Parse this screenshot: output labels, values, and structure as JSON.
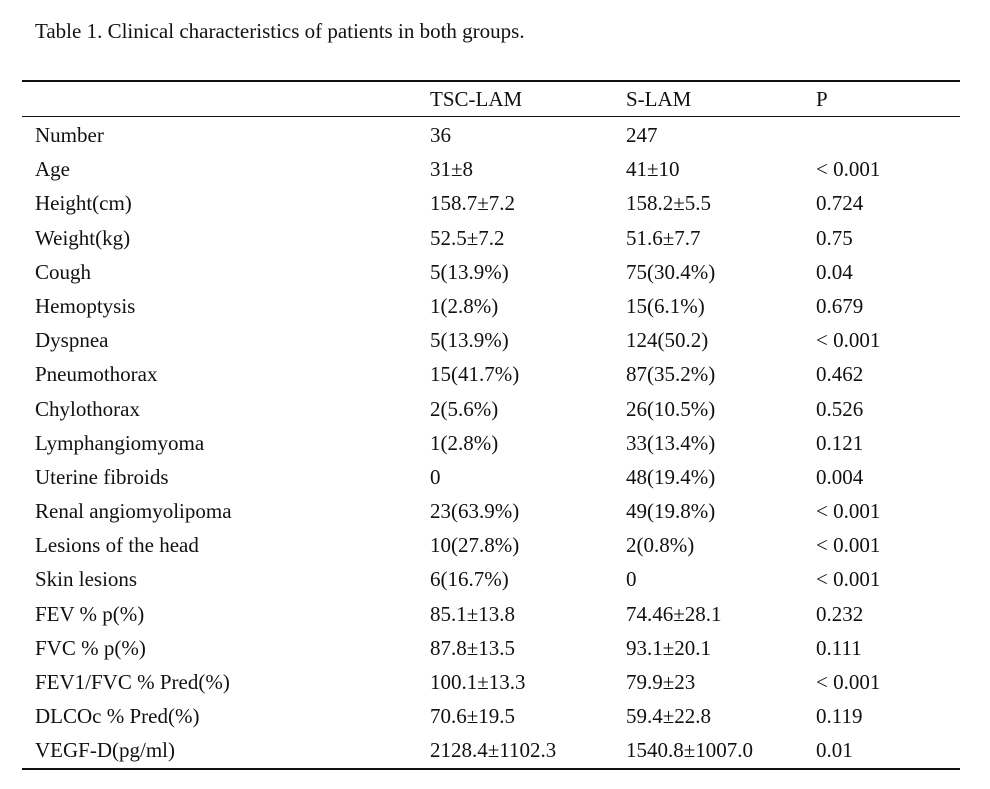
{
  "caption": "Table 1. Clinical characteristics of patients in both groups.",
  "table": {
    "headers": [
      "",
      "TSC-LAM",
      "S-LAM",
      "P"
    ],
    "rows": [
      [
        "Number",
        "36",
        "247",
        ""
      ],
      [
        "Age",
        "31±8",
        "41±10",
        " < 0.001"
      ],
      [
        "Height(cm)",
        "158.7±7.2",
        "158.2±5.5",
        "0.724"
      ],
      [
        "Weight(kg)",
        "52.5±7.2",
        "51.6±7.7",
        "0.75"
      ],
      [
        "Cough",
        "5(13.9%)",
        "75(30.4%)",
        "0.04"
      ],
      [
        "Hemoptysis",
        "1(2.8%)",
        "15(6.1%)",
        "0.679"
      ],
      [
        "Dyspnea",
        "5(13.9%)",
        "124(50.2)",
        " < 0.001"
      ],
      [
        "Pneumothorax",
        "15(41.7%)",
        "87(35.2%)",
        "0.462"
      ],
      [
        "Chylothorax",
        "2(5.6%)",
        "26(10.5%)",
        "0.526"
      ],
      [
        "Lymphangiomyoma",
        "1(2.8%)",
        "33(13.4%)",
        "0.121"
      ],
      [
        "Uterine fibroids",
        "0",
        "48(19.4%)",
        "0.004"
      ],
      [
        "Renal angiomyolipoma",
        "23(63.9%)",
        "49(19.8%)",
        " < 0.001"
      ],
      [
        "Lesions of the head",
        "10(27.8%)",
        "2(0.8%)",
        " < 0.001"
      ],
      [
        "Skin lesions",
        "6(16.7%)",
        "0",
        " < 0.001"
      ],
      [
        "FEV % p(%)",
        "85.1±13.8",
        "74.46±28.1",
        "0.232"
      ],
      [
        "FVC % p(%)",
        "87.8±13.5",
        "93.1±20.1",
        "0.111"
      ],
      [
        "FEV1/FVC % Pred(%)",
        "100.1±13.3",
        "79.9±23",
        " < 0.001"
      ],
      [
        "DLCOc % Pred(%)",
        "70.6±19.5",
        "59.4±22.8",
        "0.119"
      ],
      [
        "VEGF-D(pg/ml)",
        "2128.4±1102.3",
        "1540.8±1007.0",
        "0.01"
      ]
    ]
  }
}
